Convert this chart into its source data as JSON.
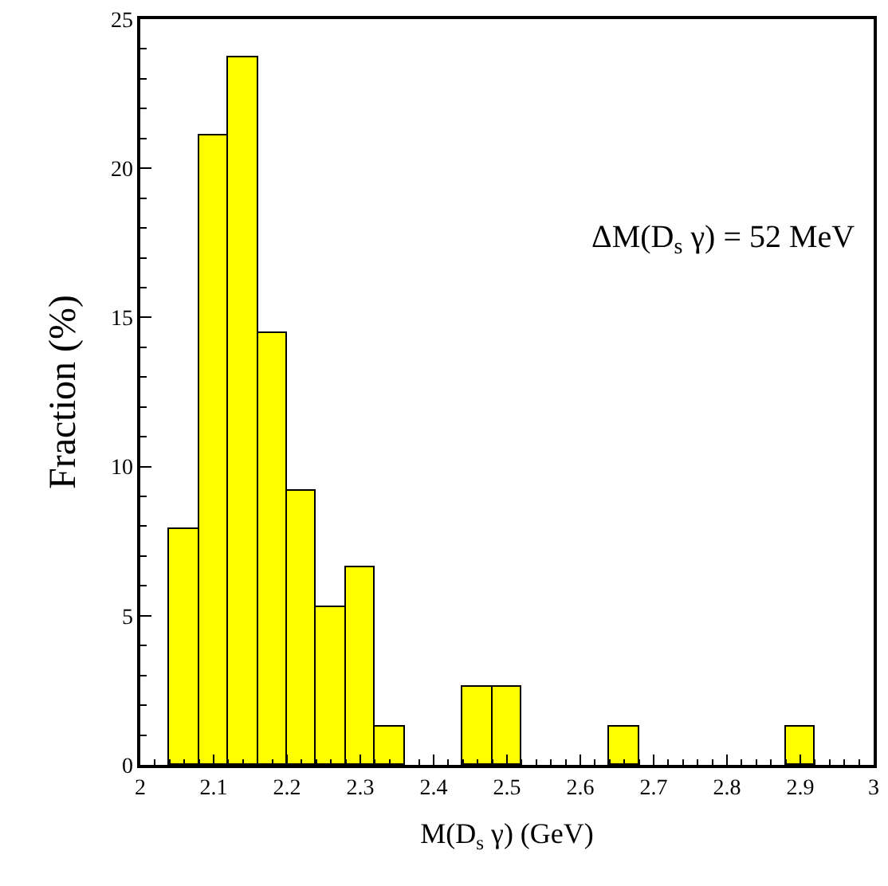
{
  "chart_data": {
    "type": "histogram",
    "xlabel": "M(D$_{s}$ γ) (GeV)",
    "ylabel": "Fraction (%)",
    "bins": [
      2.04,
      2.08,
      2.12,
      2.16,
      2.2,
      2.24,
      2.28,
      2.32,
      2.36,
      2.4,
      2.44,
      2.48,
      2.52,
      2.56,
      2.6,
      2.64,
      2.68,
      2.72,
      2.76,
      2.8,
      2.84,
      2.88,
      2.92
    ],
    "values": [
      7.9,
      21.1,
      23.7,
      14.5,
      9.2,
      5.3,
      6.6,
      1.3,
      0,
      0,
      2.6,
      2.6,
      0,
      0,
      0,
      1.3,
      0,
      0,
      0,
      0,
      0,
      1.3
    ],
    "color": "#ffff00",
    "xlim": [
      2,
      3
    ],
    "xticks": [
      2,
      2.1,
      2.2,
      2.3,
      2.4,
      2.5,
      2.6,
      2.7,
      2.8,
      2.9,
      3
    ],
    "ylim": [
      0,
      25
    ],
    "yticks": [
      0,
      5,
      10,
      15,
      20,
      25
    ],
    "annotations": [
      "ΔM(D$_{s}$ γ) = 52 MeV"
    ]
  }
}
